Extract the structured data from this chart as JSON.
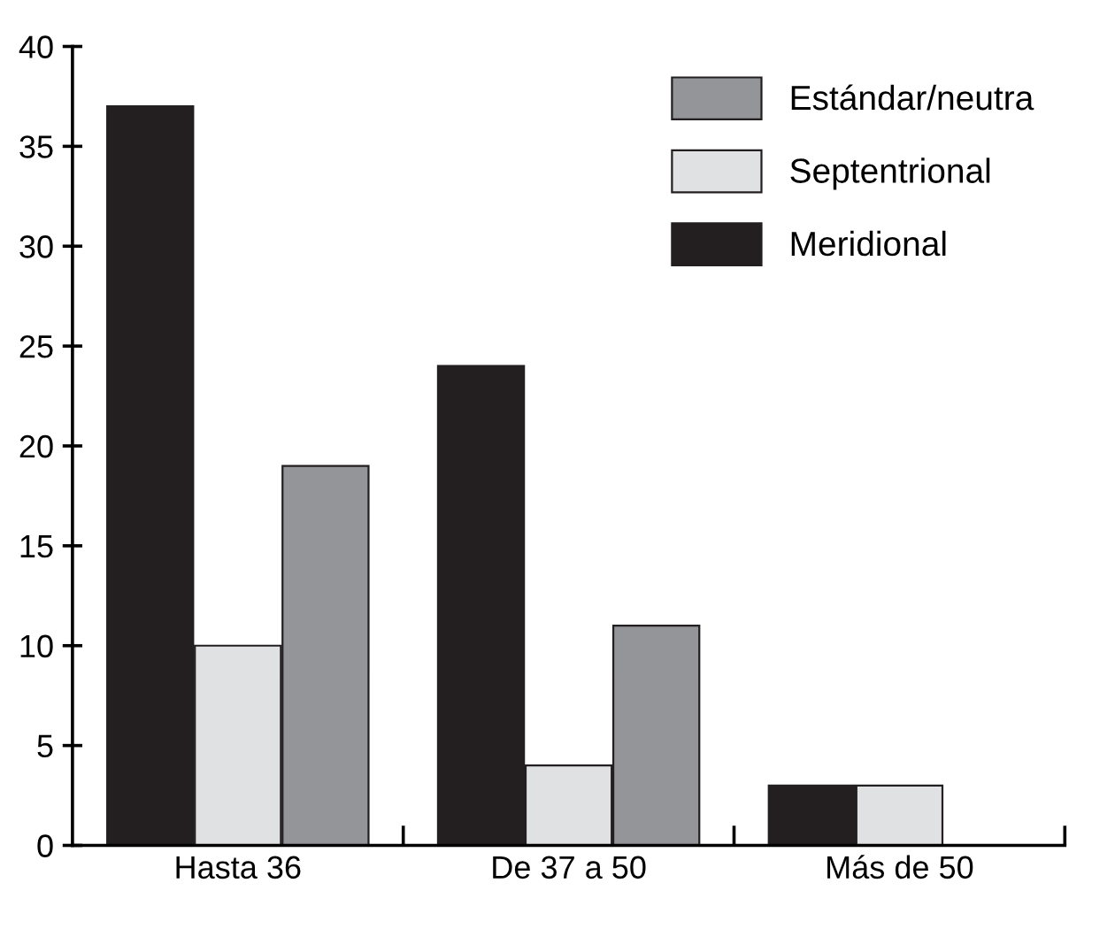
{
  "chart_data": {
    "type": "bar",
    "categories": [
      "Hasta 36",
      "De 37 a 50",
      "Más de 50"
    ],
    "series": [
      {
        "name": "Meridional",
        "color": "#231f20",
        "values": [
          37,
          24,
          3
        ]
      },
      {
        "name": "Septentrional",
        "color": "#e0e1e2",
        "values": [
          10,
          4,
          3
        ]
      },
      {
        "name": "Estándar/neutra",
        "color": "#939598",
        "values": [
          19,
          11,
          0
        ]
      }
    ],
    "ylim": [
      0,
      40
    ],
    "yticks": [
      0,
      5,
      10,
      15,
      20,
      25,
      30,
      35,
      40
    ],
    "grid": false,
    "legend": "top right"
  }
}
